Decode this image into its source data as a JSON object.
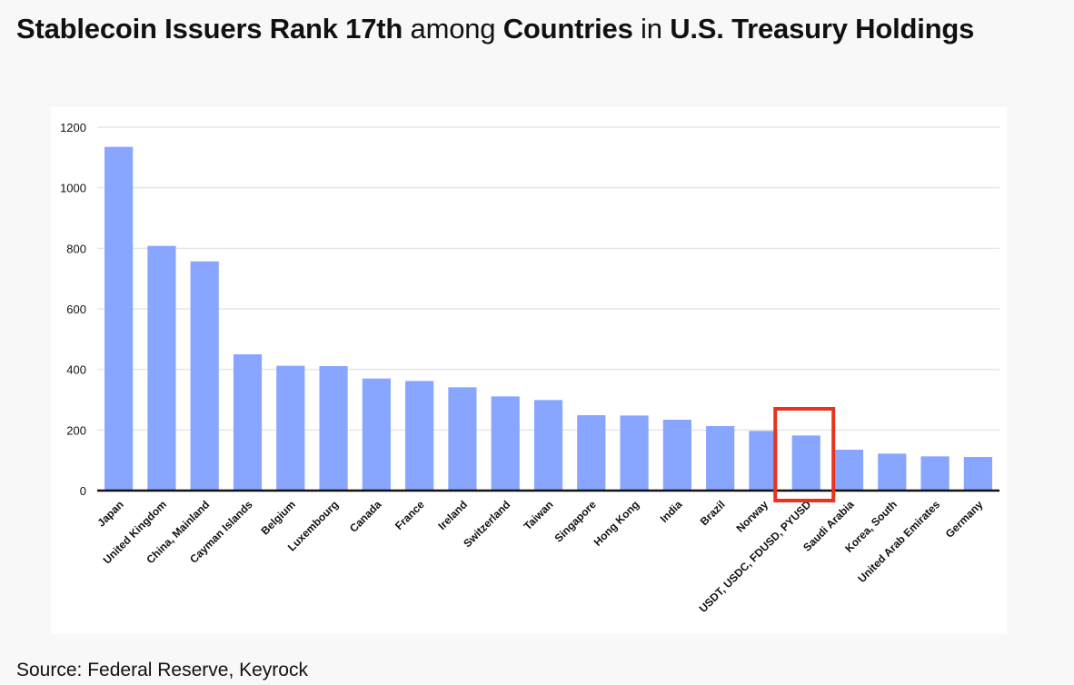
{
  "title": {
    "part1": "Stablecoin Issuers Rank 17th",
    "part2": " among ",
    "part3": "Countries",
    "part4": " in ",
    "part5": "U.S. Treasury Holdings"
  },
  "source": "Source: Federal Reserve, Keyrock",
  "colors": {
    "bar": "#88a6ff",
    "highlight": "#e8341c",
    "grid": "#e6e6e6",
    "axis": "#111111",
    "text": "#111111"
  },
  "chart_data": {
    "type": "bar",
    "title": "Stablecoin Issuers Rank 17th among Countries in U.S. Treasury Holdings",
    "xlabel": "",
    "ylabel": "",
    "ylim": [
      0,
      1200
    ],
    "yticks": [
      0,
      200,
      400,
      600,
      800,
      1000,
      1200
    ],
    "grid": true,
    "categories": [
      "Japan",
      "United Kingdom",
      "China, Mainland",
      "Cayman Islands",
      "Belgium",
      "Luxembourg",
      "Canada",
      "France",
      "Ireland",
      "Switzerland",
      "Taiwan",
      "Singapore",
      "Hong Kong",
      "India",
      "Brazil",
      "Norway",
      "USDT, USDC, FDUSD, PYUSD",
      "Saudi Arabia",
      "Korea, South",
      "United Arab Emirates",
      "Germany"
    ],
    "values": [
      1135,
      808,
      757,
      450,
      412,
      411,
      370,
      362,
      341,
      311,
      299,
      249,
      248,
      234,
      213,
      197,
      182,
      135,
      122,
      113,
      111
    ],
    "highlighted_category": "USDT, USDC, FDUSD, PYUSD"
  }
}
